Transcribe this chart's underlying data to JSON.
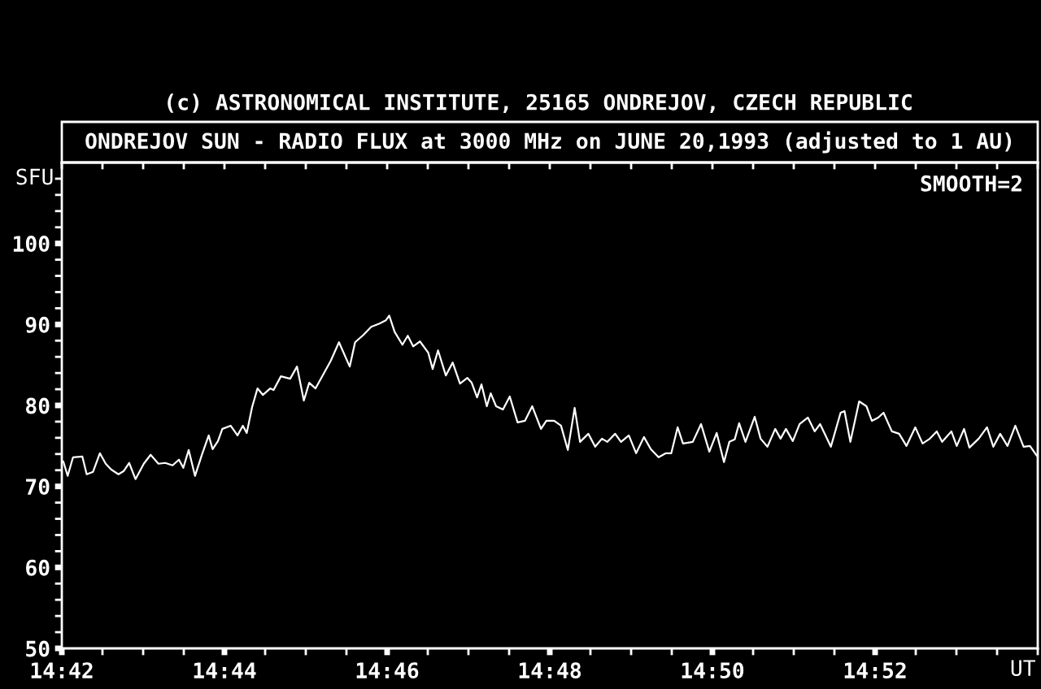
{
  "chart_data": {
    "type": "line",
    "title": "ONDREJOV SUN - RADIO FLUX at 3000 MHz on JUNE 20,1993 (adjusted to 1 AU)",
    "annotations": [
      "(c) ASTRONOMICAL INSTITUTE, 25165 ONDREJOV, CZECH REPUBLIC",
      "SMOOTH=2"
    ],
    "ylabel": "SFU",
    "xlabel": "UT",
    "xlim": [
      14.7,
      14.9
    ],
    "ylim": [
      50,
      110
    ],
    "xticks": [
      {
        "value": 14.7,
        "label": "14:42"
      },
      {
        "value": 14.70833,
        "label": null
      },
      {
        "value": 14.71667,
        "label": null
      },
      {
        "value": 14.725,
        "label": null
      },
      {
        "value": 14.73333,
        "label": "14:44"
      },
      {
        "value": 14.74167,
        "label": null
      },
      {
        "value": 14.75,
        "label": null
      },
      {
        "value": 14.75833,
        "label": null
      },
      {
        "value": 14.76667,
        "label": "14:46"
      },
      {
        "value": 14.775,
        "label": null
      },
      {
        "value": 14.78333,
        "label": null
      },
      {
        "value": 14.79167,
        "label": null
      },
      {
        "value": 14.8,
        "label": "14:48"
      },
      {
        "value": 14.80833,
        "label": null
      },
      {
        "value": 14.81667,
        "label": null
      },
      {
        "value": 14.825,
        "label": null
      },
      {
        "value": 14.83333,
        "label": "14:50"
      },
      {
        "value": 14.84167,
        "label": null
      },
      {
        "value": 14.85,
        "label": null
      },
      {
        "value": 14.85833,
        "label": null
      },
      {
        "value": 14.86667,
        "label": "14:52"
      },
      {
        "value": 14.875,
        "label": null
      },
      {
        "value": 14.88333,
        "label": null
      },
      {
        "value": 14.89167,
        "label": null
      },
      {
        "value": 14.9,
        "label": null
      }
    ],
    "yticks": [
      50,
      {
        "value": 52,
        "label": null
      },
      {
        "value": 54,
        "label": null
      },
      {
        "value": 56,
        "label": null
      },
      {
        "value": 58,
        "label": null
      },
      60,
      {
        "value": 62,
        "label": null
      },
      {
        "value": 64,
        "label": null
      },
      {
        "value": 66,
        "label": null
      },
      {
        "value": 68,
        "label": null
      },
      70,
      {
        "value": 72,
        "label": null
      },
      {
        "value": 74,
        "label": null
      },
      {
        "value": 76,
        "label": null
      },
      {
        "value": 78,
        "label": null
      },
      80,
      {
        "value": 82,
        "label": null
      },
      {
        "value": 84,
        "label": null
      },
      {
        "value": 86,
        "label": null
      },
      {
        "value": 88,
        "label": null
      },
      90,
      {
        "value": 92,
        "label": null
      },
      {
        "value": 94,
        "label": null
      },
      {
        "value": 96,
        "label": null
      },
      {
        "value": 98,
        "label": null
      },
      100,
      {
        "value": 102,
        "label": null
      },
      {
        "value": 104,
        "label": null
      },
      {
        "value": 106,
        "label": null
      },
      {
        "value": 108,
        "label": null
      }
    ],
    "x": [
      14.7003,
      14.7012,
      14.7023,
      14.7042,
      14.7051,
      14.7064,
      14.7078,
      14.709,
      14.7101,
      14.7116,
      14.7127,
      14.7138,
      14.7151,
      14.7168,
      14.7182,
      14.7198,
      14.7212,
      14.7227,
      14.724,
      14.7249,
      14.726,
      14.7273,
      14.7287,
      14.7301,
      14.7309,
      14.732,
      14.7329,
      14.7346,
      14.736,
      14.7371,
      14.7379,
      14.739,
      14.7401,
      14.7412,
      14.7427,
      14.7434,
      14.7449,
      14.7468,
      14.7482,
      14.7496,
      14.7507,
      14.752,
      14.7551,
      14.7568,
      14.759,
      14.7601,
      14.7618,
      14.7634,
      14.7651,
      14.7664,
      14.7671,
      14.7682,
      14.7698,
      14.7709,
      14.772,
      14.7734,
      14.7751,
      14.776,
      14.7771,
      14.7787,
      14.7801,
      14.7816,
      14.7831,
      14.784,
      14.7851,
      14.786,
      14.7871,
      14.7879,
      14.789,
      14.7904,
      14.7918,
      14.7934,
      14.7949,
      14.7964,
      14.7982,
      14.7993,
      14.8009,
      14.8023,
      14.8037,
      14.8051,
      14.8062,
      14.8079,
      14.8093,
      14.8107,
      14.8118,
      14.8134,
      14.8146,
      14.8162,
      14.8177,
      14.8193,
      14.8207,
      14.8223,
      14.8238,
      14.8249,
      14.8262,
      14.8273,
      14.8293,
      14.831,
      14.8327,
      14.8342,
      14.8357,
      14.8368,
      14.8379,
      14.8388,
      14.8401,
      14.842,
      14.8432,
      14.8446,
      14.8462,
      14.8473,
      14.8484,
      14.8498,
      14.8512,
      14.8529,
      14.8543,
      14.8554,
      14.8576,
      14.8596,
      14.8604,
      14.8616,
      14.8634,
      14.8649,
      14.866,
      14.8673,
      14.8684,
      14.8701,
      14.8716,
      14.8731,
      14.8749,
      14.8764,
      14.8779,
      14.8793,
      14.8804,
      14.8823,
      14.8834,
      14.8849,
      14.886,
      14.8879,
      14.8896,
      14.8909,
      14.8923,
      14.8938,
      14.8954,
      14.8971,
      14.8984,
      14.8998
    ],
    "series": [
      {
        "color": "#ffffff",
        "values": [
          73.1,
          71.3,
          73.6,
          73.7,
          71.5,
          71.8,
          74.1,
          72.8,
          72.1,
          71.5,
          71.9,
          72.9,
          70.9,
          72.8,
          73.9,
          72.8,
          72.9,
          72.6,
          73.3,
          72.3,
          74.5,
          71.3,
          73.9,
          76.3,
          74.6,
          75.6,
          77.1,
          77.5,
          76.3,
          77.5,
          76.6,
          79.8,
          82.1,
          81.3,
          82.1,
          81.9,
          83.6,
          83.3,
          84.8,
          80.6,
          82.8,
          82.1,
          85.5,
          87.8,
          84.8,
          87.8,
          88.7,
          89.7,
          90.1,
          90.5,
          91.1,
          89.1,
          87.5,
          88.6,
          87.3,
          87.9,
          86.5,
          84.5,
          86.8,
          83.7,
          85.3,
          82.7,
          83.4,
          82.8,
          81.0,
          82.6,
          79.9,
          81.5,
          79.9,
          79.5,
          81.1,
          77.9,
          78.1,
          79.9,
          77.1,
          78.1,
          78.1,
          77.5,
          74.5,
          79.7,
          75.5,
          76.5,
          74.9,
          75.9,
          75.5,
          76.5,
          75.5,
          76.3,
          74.1,
          76.1,
          74.6,
          73.6,
          74.1,
          74.1,
          77.3,
          75.3,
          75.5,
          77.7,
          74.3,
          76.6,
          73.0,
          75.5,
          75.8,
          77.8,
          75.5,
          78.6,
          75.9,
          74.9,
          77.1,
          75.9,
          77.1,
          75.6,
          77.7,
          78.5,
          76.8,
          77.7,
          74.9,
          79.1,
          79.3,
          75.5,
          80.5,
          79.9,
          78.1,
          78.5,
          79.1,
          76.8,
          76.5,
          75.0,
          77.3,
          75.3,
          75.9,
          76.8,
          75.5,
          76.8,
          75.0,
          77.1,
          74.8,
          75.9,
          77.3,
          74.9,
          76.5,
          75.0,
          77.5,
          74.9,
          75.0,
          73.8
        ]
      }
    ]
  }
}
